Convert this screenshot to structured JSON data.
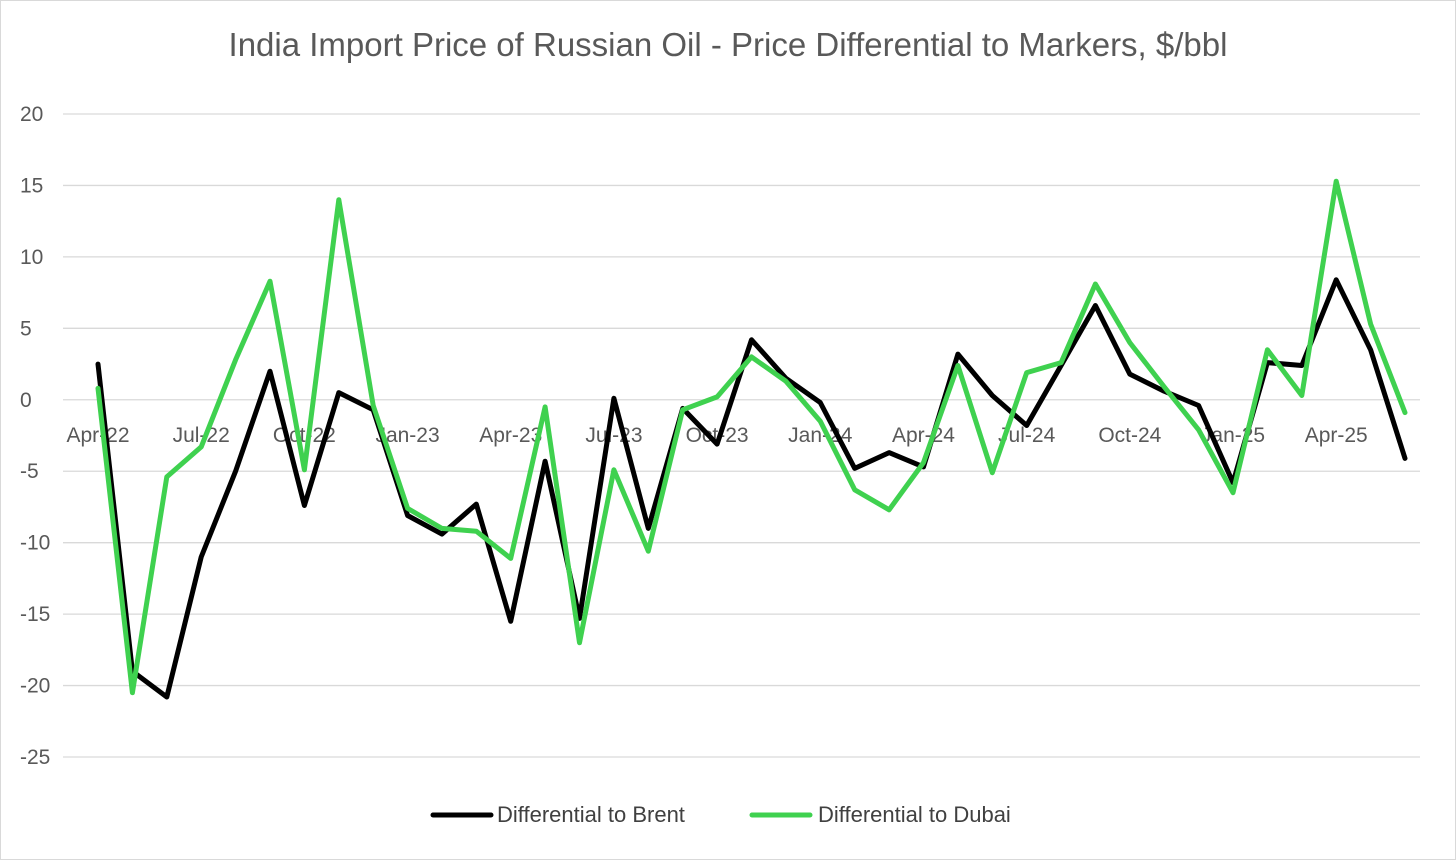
{
  "chart_data": {
    "type": "line",
    "title": "India Import Price of Russian Oil - Price Differential to Markers, $/bbl",
    "xlabel": "",
    "ylabel": "",
    "ylim": [
      -25,
      20
    ],
    "yticks": [
      20,
      15,
      10,
      5,
      0,
      -5,
      -10,
      -15,
      -20,
      -25
    ],
    "grid": true,
    "legend_position": "bottom",
    "x": [
      "Apr-22",
      "May-22",
      "Jun-22",
      "Jul-22",
      "Aug-22",
      "Sep-22",
      "Oct-22",
      "Nov-22",
      "Dec-22",
      "Jan-23",
      "Feb-23",
      "Mar-23",
      "Apr-23",
      "May-23",
      "Jun-23",
      "Jul-23",
      "Aug-23",
      "Sep-23",
      "Oct-23",
      "Nov-23",
      "Dec-23",
      "Jan-24",
      "Feb-24",
      "Mar-24",
      "Apr-24",
      "May-24",
      "Jun-24",
      "Jul-24",
      "Aug-24",
      "Sep-24",
      "Oct-24",
      "Nov-24",
      "Dec-24",
      "Jan-25",
      "Feb-25",
      "Mar-25",
      "Apr-25",
      "May-25",
      "Jun-25"
    ],
    "x_tick_labels": [
      {
        "index": 0,
        "label": "Apr-22"
      },
      {
        "index": 3,
        "label": "Jul-22"
      },
      {
        "index": 6,
        "label": "Oct-22"
      },
      {
        "index": 9,
        "label": "Jan-23"
      },
      {
        "index": 12,
        "label": "Apr-23"
      },
      {
        "index": 15,
        "label": "Jul-23"
      },
      {
        "index": 18,
        "label": "Oct-23"
      },
      {
        "index": 21,
        "label": "Jan-24"
      },
      {
        "index": 24,
        "label": "Apr-24"
      },
      {
        "index": 27,
        "label": "Jul-24"
      },
      {
        "index": 30,
        "label": "Oct-24"
      },
      {
        "index": 33,
        "label": "Jan-25"
      },
      {
        "index": 36,
        "label": "Apr-25"
      }
    ],
    "series": [
      {
        "name": "Differential to Brent",
        "color": "#000000",
        "values": [
          2.5,
          -19,
          -20.8,
          -11,
          -5,
          2,
          -7.4,
          0.5,
          -0.7,
          -8.1,
          -9.4,
          -7.3,
          -15.5,
          -4.3,
          -15.3,
          0.1,
          -9,
          -0.6,
          -3.1,
          4.2,
          1.5,
          -0.2,
          -4.8,
          -3.7,
          -4.7,
          3.2,
          0.3,
          -1.8,
          2.4,
          6.6,
          1.8,
          0.6,
          -0.4,
          -5.8,
          2.6,
          2.4,
          8.4,
          3.5,
          -4.1
        ]
      },
      {
        "name": "Differential to Dubai",
        "color": "#3fd14f",
        "values": [
          0.8,
          -20.5,
          -5.4,
          -3.3,
          2.8,
          8.3,
          -4.9,
          14,
          -0.4,
          -7.6,
          -9,
          -9.2,
          -11.1,
          -0.5,
          -17,
          -4.9,
          -10.6,
          -0.7,
          0.2,
          3,
          1.3,
          -1.5,
          -6.3,
          -7.7,
          -4.4,
          2.4,
          -5.1,
          1.9,
          2.6,
          8.1,
          4,
          0.9,
          -2.1,
          -6.5,
          3.5,
          0.3,
          15.3,
          5.3,
          -0.9
        ]
      }
    ]
  }
}
